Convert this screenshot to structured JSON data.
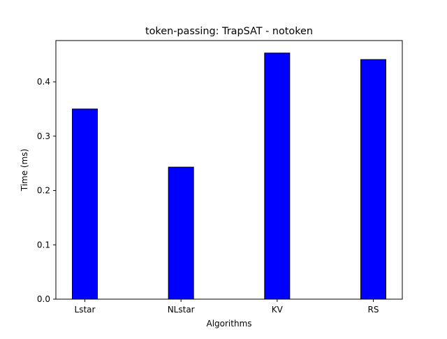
{
  "chart_data": {
    "type": "bar",
    "title": "token-passing: TrapSAT - notoken",
    "xlabel": "Algorithms",
    "ylabel": "Time (ms)",
    "categories": [
      "Lstar",
      "NLstar",
      "KV",
      "RS"
    ],
    "values": [
      0.35,
      0.243,
      0.453,
      0.441
    ],
    "ylim": [
      0,
      0.476
    ],
    "yticks": [
      "0.0",
      "0.1",
      "0.2",
      "0.3",
      "0.4"
    ],
    "grid": false,
    "legend": "none",
    "colors": {
      "bar_fill": "#0000ff",
      "bar_edge": "#000000"
    }
  }
}
